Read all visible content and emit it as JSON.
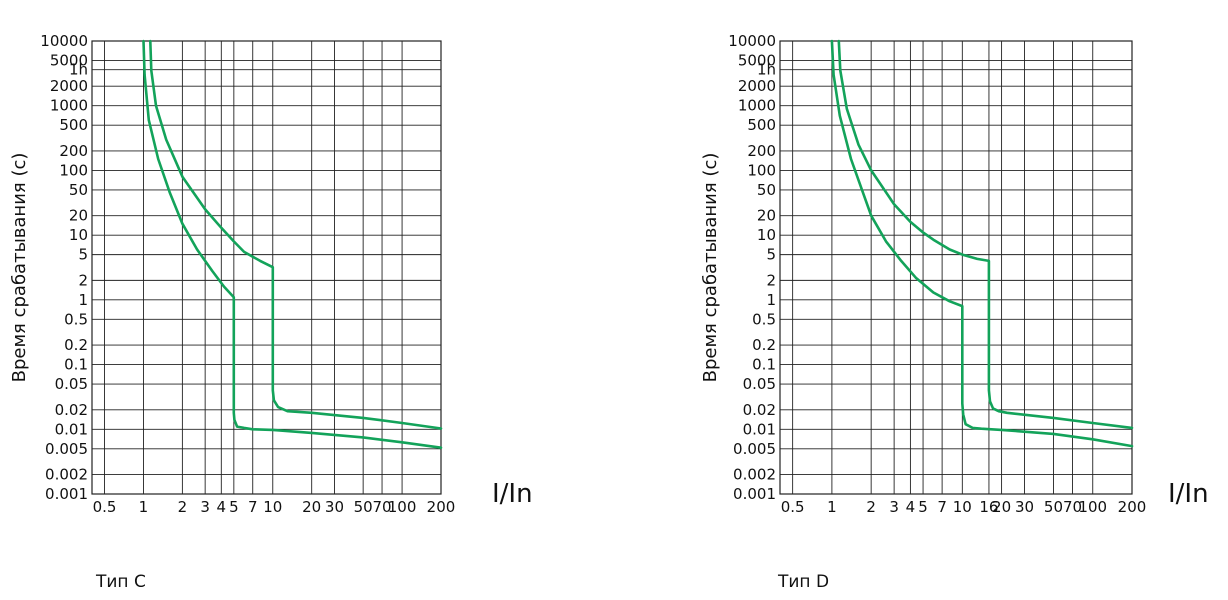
{
  "chart_data": [
    {
      "type": "line",
      "caption": "Тип C",
      "ylabel": "Время срабатывания (с)",
      "xlabel": "I/In",
      "x_scale": "log",
      "y_scale": "log",
      "xlim": [
        0.4,
        200
      ],
      "ylim": [
        0.001,
        10000
      ],
      "x_ticks": [
        {
          "v": 0.5,
          "label": "0.5"
        },
        {
          "v": 1,
          "label": "1"
        },
        {
          "v": 2,
          "label": "2"
        },
        {
          "v": 3,
          "label": "3"
        },
        {
          "v": 4,
          "label": "4"
        },
        {
          "v": 5,
          "label": "5"
        },
        {
          "v": 7,
          "label": "7"
        },
        {
          "v": 10,
          "label": "10"
        },
        {
          "v": 20,
          "label": "20"
        },
        {
          "v": 30,
          "label": "30"
        },
        {
          "v": 50,
          "label": "50"
        },
        {
          "v": 70,
          "label": "70"
        },
        {
          "v": 100,
          "label": "100"
        },
        {
          "v": 200,
          "label": "200"
        }
      ],
      "y_ticks": [
        {
          "v": 10000,
          "label": "10000"
        },
        {
          "v": 5000,
          "label": "5000"
        },
        {
          "v": 3600,
          "label": "1h"
        },
        {
          "v": 2000,
          "label": "2000"
        },
        {
          "v": 1000,
          "label": "1000"
        },
        {
          "v": 500,
          "label": "500"
        },
        {
          "v": 200,
          "label": "200"
        },
        {
          "v": 100,
          "label": "100"
        },
        {
          "v": 50,
          "label": "50"
        },
        {
          "v": 20,
          "label": "20"
        },
        {
          "v": 10,
          "label": "10"
        },
        {
          "v": 5,
          "label": "5"
        },
        {
          "v": 2,
          "label": "2"
        },
        {
          "v": 1,
          "label": "1"
        },
        {
          "v": 0.5,
          "label": "0.5"
        },
        {
          "v": 0.2,
          "label": "0.2"
        },
        {
          "v": 0.1,
          "label": "0.1"
        },
        {
          "v": 0.05,
          "label": "0.05"
        },
        {
          "v": 0.02,
          "label": "0.02"
        },
        {
          "v": 0.01,
          "label": "0.01"
        },
        {
          "v": 0.005,
          "label": "0.005"
        },
        {
          "v": 0.002,
          "label": "0.002"
        },
        {
          "v": 0.001,
          "label": "0.001"
        }
      ],
      "grid": true,
      "line_color": "#13a35a",
      "series": [
        {
          "x": [
            1.0,
            1.02,
            1.1,
            1.3,
            1.6,
            2.0,
            2.6,
            3.4,
            4.2,
            5.0,
            5.0,
            5.05,
            5.3,
            6.0,
            7.0,
            10,
            20,
            50,
            100,
            200
          ],
          "y": [
            10000,
            3000,
            600,
            150,
            45,
            15,
            6,
            2.8,
            1.6,
            1.1,
            0.018,
            0.014,
            0.011,
            0.0105,
            0.01,
            0.0098,
            0.0088,
            0.0075,
            0.0063,
            0.0052
          ]
        },
        {
          "x": [
            1.13,
            1.15,
            1.25,
            1.5,
            2.0,
            3.0,
            4.0,
            5.0,
            6.0,
            8.0,
            10.0,
            10.0,
            10.2,
            11,
            13,
            20,
            50,
            100,
            200
          ],
          "y": [
            10000,
            3500,
            1000,
            300,
            80,
            25,
            13,
            8,
            5.5,
            4,
            3.2,
            0.04,
            0.028,
            0.022,
            0.019,
            0.018,
            0.015,
            0.0125,
            0.0103
          ]
        }
      ]
    },
    {
      "type": "line",
      "caption": "Тип D",
      "ylabel": "Время срабатывания (с)",
      "xlabel": "I/In",
      "x_scale": "log",
      "y_scale": "log",
      "xlim": [
        0.4,
        200
      ],
      "ylim": [
        0.001,
        10000
      ],
      "x_ticks": [
        {
          "v": 0.5,
          "label": "0.5"
        },
        {
          "v": 1,
          "label": "1"
        },
        {
          "v": 2,
          "label": "2"
        },
        {
          "v": 3,
          "label": "3"
        },
        {
          "v": 4,
          "label": "4"
        },
        {
          "v": 5,
          "label": "5"
        },
        {
          "v": 7,
          "label": "7"
        },
        {
          "v": 10,
          "label": "10"
        },
        {
          "v": 16,
          "label": "16"
        },
        {
          "v": 20,
          "label": "20"
        },
        {
          "v": 30,
          "label": "30"
        },
        {
          "v": 50,
          "label": "50"
        },
        {
          "v": 70,
          "label": "70"
        },
        {
          "v": 100,
          "label": "100"
        },
        {
          "v": 200,
          "label": "200"
        }
      ],
      "y_ticks": [
        {
          "v": 10000,
          "label": "10000"
        },
        {
          "v": 5000,
          "label": "5000"
        },
        {
          "v": 3600,
          "label": "1h"
        },
        {
          "v": 2000,
          "label": "2000"
        },
        {
          "v": 1000,
          "label": "1000"
        },
        {
          "v": 500,
          "label": "500"
        },
        {
          "v": 200,
          "label": "200"
        },
        {
          "v": 100,
          "label": "100"
        },
        {
          "v": 50,
          "label": "50"
        },
        {
          "v": 20,
          "label": "20"
        },
        {
          "v": 10,
          "label": "10"
        },
        {
          "v": 5,
          "label": "5"
        },
        {
          "v": 2,
          "label": "2"
        },
        {
          "v": 1,
          "label": "1"
        },
        {
          "v": 0.5,
          "label": "0.5"
        },
        {
          "v": 0.2,
          "label": "0.2"
        },
        {
          "v": 0.1,
          "label": "0.1"
        },
        {
          "v": 0.05,
          "label": "0.05"
        },
        {
          "v": 0.02,
          "label": "0.02"
        },
        {
          "v": 0.01,
          "label": "0.01"
        },
        {
          "v": 0.005,
          "label": "0.005"
        },
        {
          "v": 0.002,
          "label": "0.002"
        },
        {
          "v": 0.001,
          "label": "0.001"
        }
      ],
      "grid": true,
      "line_color": "#13a35a",
      "series": [
        {
          "x": [
            1.0,
            1.03,
            1.15,
            1.4,
            1.7,
            2.0,
            2.6,
            3.4,
            4.4,
            6.0,
            8.0,
            10.0,
            10.0,
            10.15,
            10.6,
            12,
            14,
            20,
            50,
            100,
            200
          ],
          "y": [
            10000,
            3000,
            700,
            150,
            50,
            20,
            8,
            4,
            2.2,
            1.3,
            0.95,
            0.8,
            0.025,
            0.017,
            0.012,
            0.0105,
            0.0102,
            0.0098,
            0.0085,
            0.007,
            0.0055
          ]
        },
        {
          "x": [
            1.13,
            1.16,
            1.3,
            1.6,
            2.0,
            3.0,
            4.0,
            5.0,
            6.0,
            8.0,
            10.0,
            13.0,
            16.0,
            16.0,
            16.3,
            17.2,
            19,
            22,
            50,
            100,
            200
          ],
          "y": [
            10000,
            3500,
            900,
            250,
            100,
            30,
            16,
            11,
            8.5,
            6,
            5,
            4.3,
            4,
            0.04,
            0.027,
            0.021,
            0.019,
            0.018,
            0.015,
            0.0125,
            0.0105
          ]
        }
      ]
    }
  ]
}
